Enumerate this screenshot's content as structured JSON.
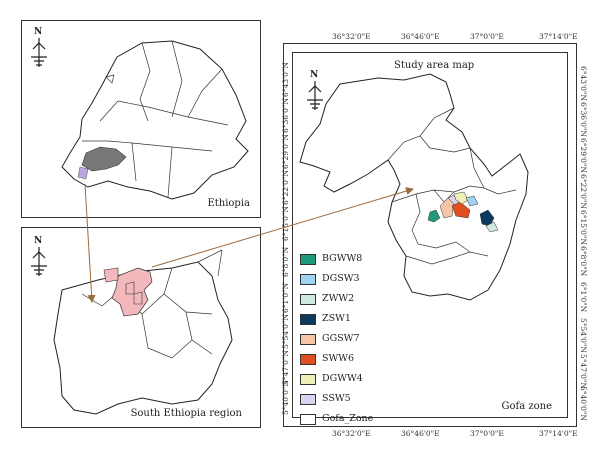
{
  "panels": {
    "ethiopia": {
      "title": "Ethiopia"
    },
    "south": {
      "title": "South Ethiopia region"
    },
    "study": {
      "title": "Study area map",
      "zone_label": "Gofa zone"
    }
  },
  "north_arrow": {
    "letter": "N"
  },
  "ticks": {
    "top": [
      "36°32'0\"E",
      "36°46'0\"E",
      "37°0'0\"E",
      "37°14'0\"E"
    ],
    "bottom": [
      "36°32'0\"E",
      "36°46'0\"E",
      "37°0'0\"E",
      "37°14'0\"E"
    ],
    "left": [
      "6°43'0\"N",
      "6°36'0\"N",
      "6°29'0\"N",
      "6°22'0\"N",
      "6°15'0\"N",
      "6°8'0\"N",
      "6°1'0\"N",
      "5°54'0\"N",
      "5°47'0\"N",
      "5°40'0\"N"
    ],
    "right": [
      "6°43'0\"N",
      "6°36'0\"N",
      "6°29'0\"N",
      "6°22'0\"N",
      "6°15'0\"N",
      "6°8'0\"N",
      "6°1'0\"N",
      "5°54'0\"N",
      "5°47'0\"N",
      "5°40'0\"N"
    ]
  },
  "legend": [
    {
      "label": "BGWW8",
      "color": "#1f9a7c"
    },
    {
      "label": "DGSW3",
      "color": "#9fd3ef"
    },
    {
      "label": "ZWW2",
      "color": "#cfe8e0"
    },
    {
      "label": "ZSW1",
      "color": "#0d3a5c"
    },
    {
      "label": "GGSW7",
      "color": "#f5c6a5"
    },
    {
      "label": "SWW6",
      "color": "#e0501e"
    },
    {
      "label": "DGWW4",
      "color": "#eef0b8"
    },
    {
      "label": "SSW5",
      "color": "#d9d2f0"
    },
    {
      "label": "Gofa_Zone",
      "color": "#ffffff"
    }
  ],
  "colors": {
    "highlight_region": "#f2b8bc",
    "ethiopia_zone": "#777777"
  }
}
